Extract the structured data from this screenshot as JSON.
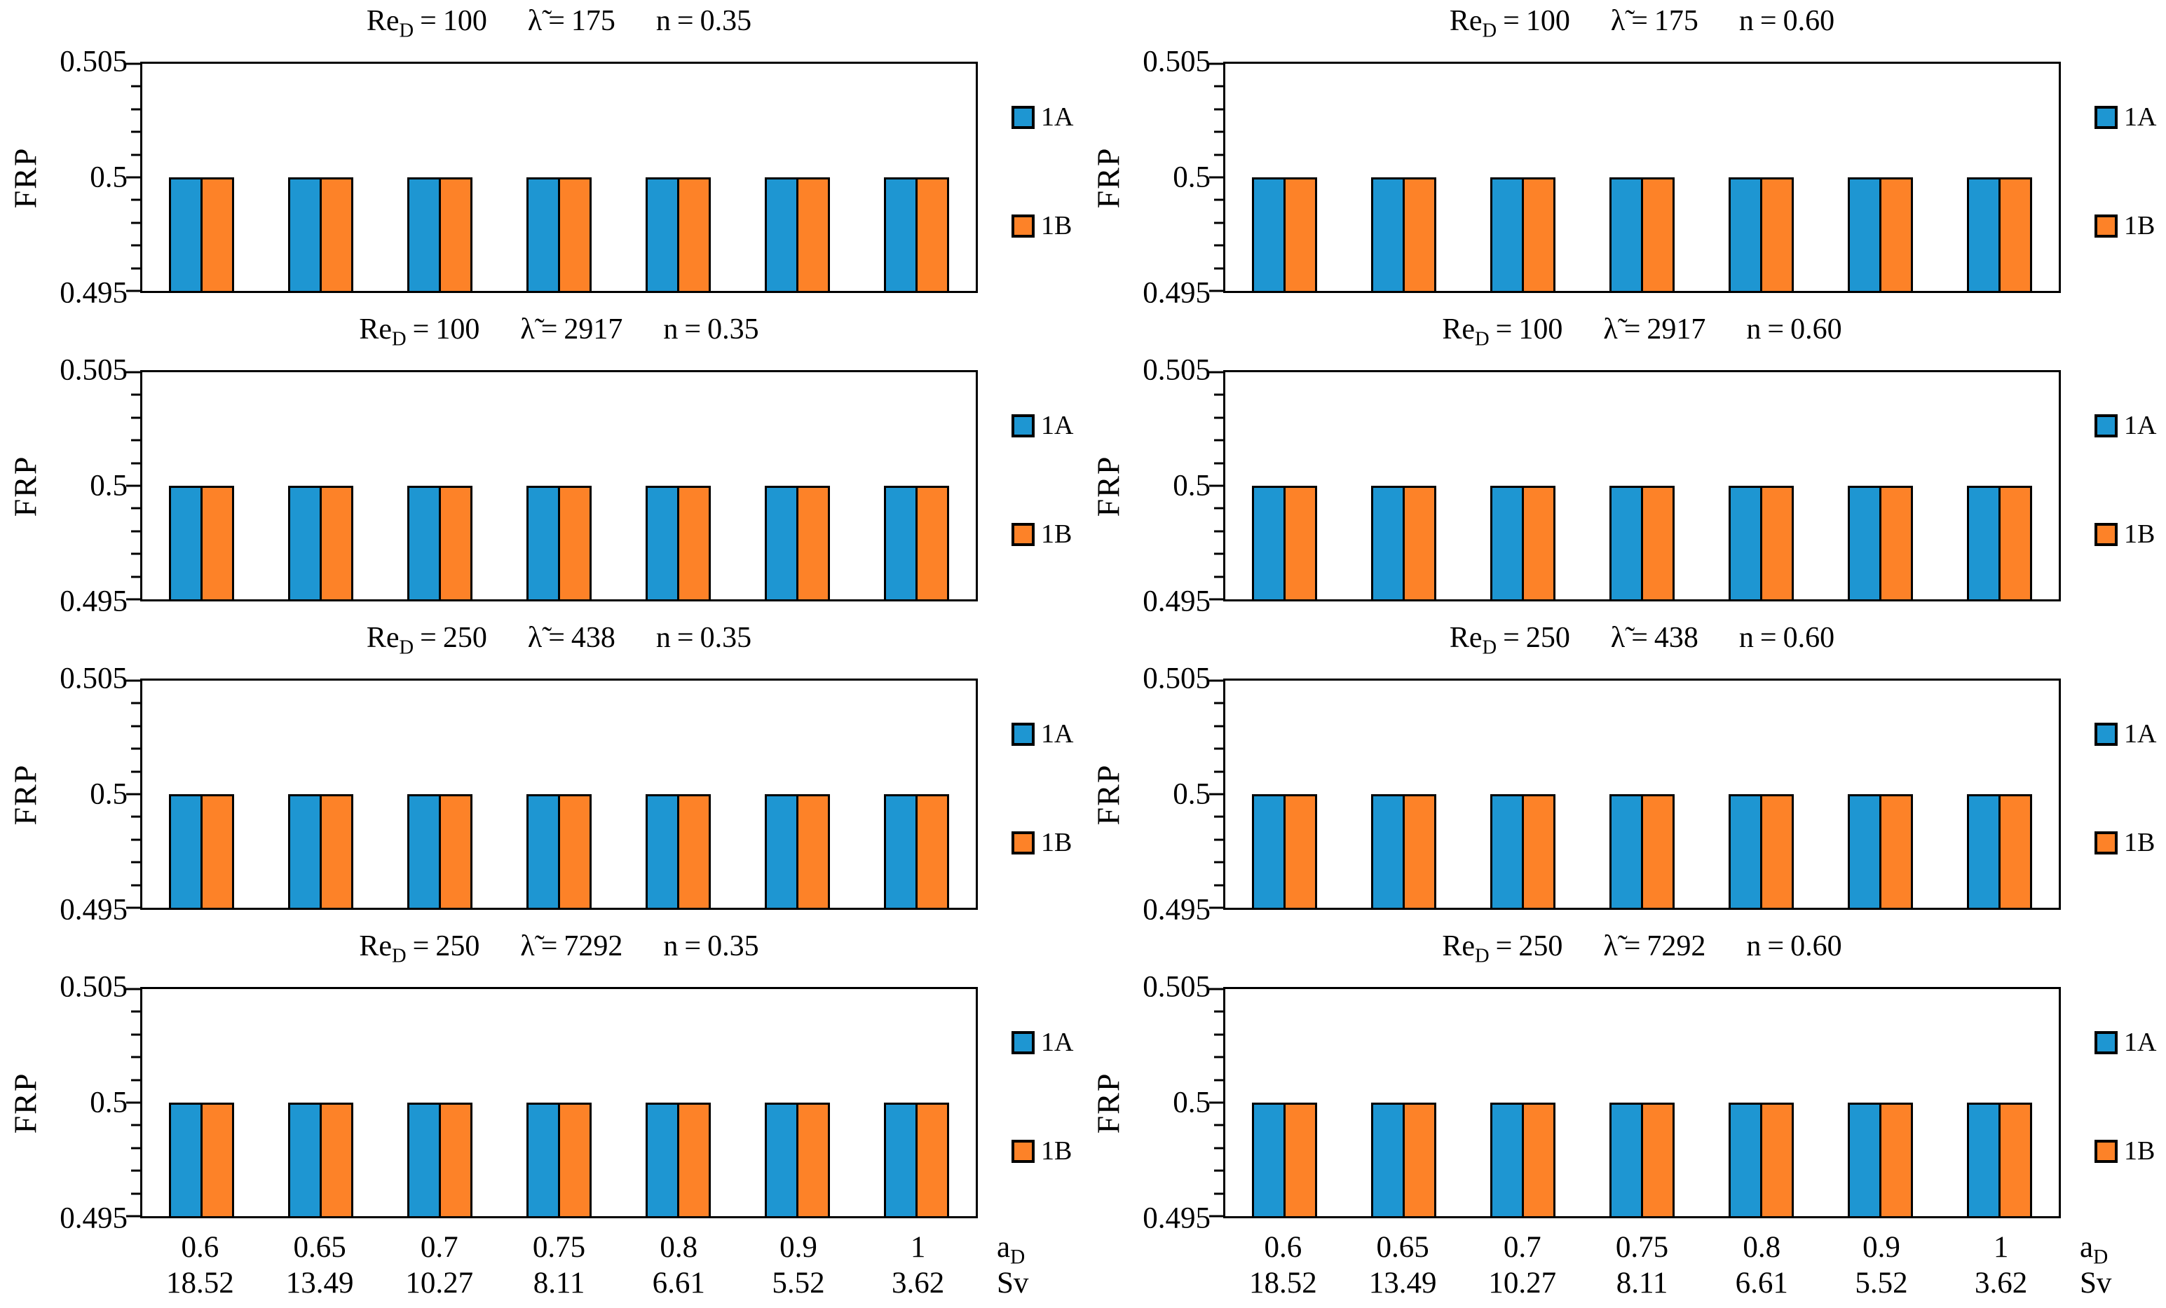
{
  "figure": {
    "ylabel": "FRP",
    "y_ticks": [
      "0.505",
      "0.5",
      "0.495"
    ],
    "title_tokens": {
      "re_base": "Re",
      "re_sub": "D",
      "lambda": "λ̃",
      "n": "n",
      "eq": "="
    },
    "x_axis": {
      "ad_unit_base": "a",
      "ad_unit_sub": "D",
      "sv_unit": "Sv"
    },
    "legend": [
      {
        "name": "1A",
        "color": "#1E96D2"
      },
      {
        "name": "1B",
        "color": "#FD8228"
      }
    ]
  },
  "chart_data": [
    {
      "type": "bar",
      "position": "row1-left",
      "title": {
        "re_d": "100",
        "lambda": "175",
        "n": "0.35"
      },
      "ylabel": "FRP",
      "ylim": [
        0.495,
        0.505
      ],
      "y_tick_step_major": 0.005,
      "y_tick_step_minor": 0.001,
      "categories_aD": [
        "0.6",
        "0.65",
        "0.7",
        "0.75",
        "0.8",
        "0.9",
        "1"
      ],
      "categories_Sv": [
        "18.52",
        "13.49",
        "10.27",
        "8.11",
        "6.61",
        "5.52",
        "3.62"
      ],
      "series": [
        {
          "name": "1A",
          "values": [
            0.5,
            0.5,
            0.5,
            0.5,
            0.5,
            0.5,
            0.5
          ]
        },
        {
          "name": "1B",
          "values": [
            0.5,
            0.5,
            0.5,
            0.5,
            0.5,
            0.5,
            0.5
          ]
        }
      ],
      "legend_position": "right",
      "grid": false,
      "show_x_labels": false
    },
    {
      "type": "bar",
      "position": "row1-right",
      "title": {
        "re_d": "100",
        "lambda": "175",
        "n": "0.60"
      },
      "ylabel": "FRP",
      "ylim": [
        0.495,
        0.505
      ],
      "y_tick_step_major": 0.005,
      "y_tick_step_minor": 0.001,
      "categories_aD": [
        "0.6",
        "0.65",
        "0.7",
        "0.75",
        "0.8",
        "0.9",
        "1"
      ],
      "categories_Sv": [
        "18.52",
        "13.49",
        "10.27",
        "8.11",
        "6.61",
        "5.52",
        "3.62"
      ],
      "series": [
        {
          "name": "1A",
          "values": [
            0.5,
            0.5,
            0.5,
            0.5,
            0.5,
            0.5,
            0.5
          ]
        },
        {
          "name": "1B",
          "values": [
            0.5,
            0.5,
            0.5,
            0.5,
            0.5,
            0.5,
            0.5
          ]
        }
      ],
      "legend_position": "right",
      "grid": false,
      "show_x_labels": false
    },
    {
      "type": "bar",
      "position": "row2-left",
      "title": {
        "re_d": "100",
        "lambda": "2917",
        "n": "0.35"
      },
      "ylabel": "FRP",
      "ylim": [
        0.495,
        0.505
      ],
      "y_tick_step_major": 0.005,
      "y_tick_step_minor": 0.001,
      "categories_aD": [
        "0.6",
        "0.65",
        "0.7",
        "0.75",
        "0.8",
        "0.9",
        "1"
      ],
      "categories_Sv": [
        "18.52",
        "13.49",
        "10.27",
        "8.11",
        "6.61",
        "5.52",
        "3.62"
      ],
      "series": [
        {
          "name": "1A",
          "values": [
            0.5,
            0.5,
            0.5,
            0.5,
            0.5,
            0.5,
            0.5
          ]
        },
        {
          "name": "1B",
          "values": [
            0.5,
            0.5,
            0.5,
            0.5,
            0.5,
            0.5,
            0.5
          ]
        }
      ],
      "legend_position": "right",
      "grid": false,
      "show_x_labels": false
    },
    {
      "type": "bar",
      "position": "row2-right",
      "title": {
        "re_d": "100",
        "lambda": "2917",
        "n": "0.60"
      },
      "ylabel": "FRP",
      "ylim": [
        0.495,
        0.505
      ],
      "y_tick_step_major": 0.005,
      "y_tick_step_minor": 0.001,
      "categories_aD": [
        "0.6",
        "0.65",
        "0.7",
        "0.75",
        "0.8",
        "0.9",
        "1"
      ],
      "categories_Sv": [
        "18.52",
        "13.49",
        "10.27",
        "8.11",
        "6.61",
        "5.52",
        "3.62"
      ],
      "series": [
        {
          "name": "1A",
          "values": [
            0.5,
            0.5,
            0.5,
            0.5,
            0.5,
            0.5,
            0.5
          ]
        },
        {
          "name": "1B",
          "values": [
            0.5,
            0.5,
            0.5,
            0.5,
            0.5,
            0.5,
            0.5
          ]
        }
      ],
      "legend_position": "right",
      "grid": false,
      "show_x_labels": false
    },
    {
      "type": "bar",
      "position": "row3-left",
      "title": {
        "re_d": "250",
        "lambda": "438",
        "n": "0.35"
      },
      "ylabel": "FRP",
      "ylim": [
        0.495,
        0.505
      ],
      "y_tick_step_major": 0.005,
      "y_tick_step_minor": 0.001,
      "categories_aD": [
        "0.6",
        "0.65",
        "0.7",
        "0.75",
        "0.8",
        "0.9",
        "1"
      ],
      "categories_Sv": [
        "18.52",
        "13.49",
        "10.27",
        "8.11",
        "6.61",
        "5.52",
        "3.62"
      ],
      "series": [
        {
          "name": "1A",
          "values": [
            0.5,
            0.5,
            0.5,
            0.5,
            0.5,
            0.5,
            0.5
          ]
        },
        {
          "name": "1B",
          "values": [
            0.5,
            0.5,
            0.5,
            0.5,
            0.5,
            0.5,
            0.5
          ]
        }
      ],
      "legend_position": "right",
      "grid": false,
      "show_x_labels": false
    },
    {
      "type": "bar",
      "position": "row3-right",
      "title": {
        "re_d": "250",
        "lambda": "438",
        "n": "0.60"
      },
      "ylabel": "FRP",
      "ylim": [
        0.495,
        0.505
      ],
      "y_tick_step_major": 0.005,
      "y_tick_step_minor": 0.001,
      "categories_aD": [
        "0.6",
        "0.65",
        "0.7",
        "0.75",
        "0.8",
        "0.9",
        "1"
      ],
      "categories_Sv": [
        "18.52",
        "13.49",
        "10.27",
        "8.11",
        "6.61",
        "5.52",
        "3.62"
      ],
      "series": [
        {
          "name": "1A",
          "values": [
            0.5,
            0.5,
            0.5,
            0.5,
            0.5,
            0.5,
            0.5
          ]
        },
        {
          "name": "1B",
          "values": [
            0.5,
            0.5,
            0.5,
            0.5,
            0.5,
            0.5,
            0.5
          ]
        }
      ],
      "legend_position": "right",
      "grid": false,
      "show_x_labels": false
    },
    {
      "type": "bar",
      "position": "row4-left",
      "title": {
        "re_d": "250",
        "lambda": "7292",
        "n": "0.35"
      },
      "ylabel": "FRP",
      "ylim": [
        0.495,
        0.505
      ],
      "y_tick_step_major": 0.005,
      "y_tick_step_minor": 0.001,
      "categories_aD": [
        "0.6",
        "0.65",
        "0.7",
        "0.75",
        "0.8",
        "0.9",
        "1"
      ],
      "categories_Sv": [
        "18.52",
        "13.49",
        "10.27",
        "8.11",
        "6.61",
        "5.52",
        "3.62"
      ],
      "series": [
        {
          "name": "1A",
          "values": [
            0.5,
            0.5,
            0.5,
            0.5,
            0.5,
            0.5,
            0.5
          ]
        },
        {
          "name": "1B",
          "values": [
            0.5,
            0.5,
            0.5,
            0.5,
            0.5,
            0.5,
            0.5
          ]
        }
      ],
      "legend_position": "right",
      "grid": false,
      "show_x_labels": true
    },
    {
      "type": "bar",
      "position": "row4-right",
      "title": {
        "re_d": "250",
        "lambda": "7292",
        "n": "0.60"
      },
      "ylabel": "FRP",
      "ylim": [
        0.495,
        0.505
      ],
      "y_tick_step_major": 0.005,
      "y_tick_step_minor": 0.001,
      "categories_aD": [
        "0.6",
        "0.65",
        "0.7",
        "0.75",
        "0.8",
        "0.9",
        "1"
      ],
      "categories_Sv": [
        "18.52",
        "13.49",
        "10.27",
        "8.11",
        "6.61",
        "5.52",
        "3.62"
      ],
      "series": [
        {
          "name": "1A",
          "values": [
            0.5,
            0.5,
            0.5,
            0.5,
            0.5,
            0.5,
            0.5
          ]
        },
        {
          "name": "1B",
          "values": [
            0.5,
            0.5,
            0.5,
            0.5,
            0.5,
            0.5,
            0.5
          ]
        }
      ],
      "legend_position": "right",
      "grid": false,
      "show_x_labels": true
    }
  ]
}
